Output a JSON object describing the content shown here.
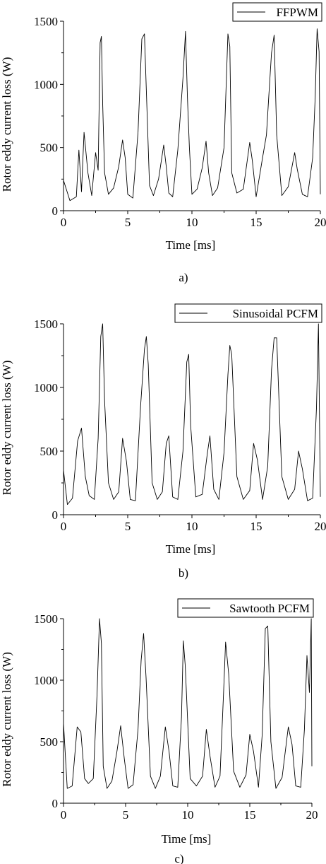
{
  "chart_data": [
    {
      "type": "line",
      "caption": "a)",
      "xlabel": "Time [ms]",
      "ylabel": "Rotor eddy current loss (W)",
      "xlim": [
        0,
        20
      ],
      "ylim": [
        0,
        1500
      ],
      "xticks": [
        "0",
        "5",
        "10",
        "15",
        "20"
      ],
      "yticks": [
        "0",
        "500",
        "1000",
        "1500"
      ],
      "legend_position": "top-right",
      "grid": false,
      "series": [
        {
          "name": "FFPWM",
          "color": "#000000",
          "x": [
            0,
            0.5,
            1.0,
            1.2,
            1.4,
            1.6,
            1.9,
            2.2,
            2.5,
            2.7,
            2.85,
            2.95,
            3.05,
            3.2,
            3.5,
            3.9,
            4.3,
            4.6,
            4.8,
            5.0,
            5.4,
            5.8,
            6.1,
            6.3,
            6.5,
            6.7,
            7.0,
            7.4,
            7.8,
            8.0,
            8.2,
            8.5,
            8.9,
            9.3,
            9.5,
            9.65,
            9.8,
            10.0,
            10.4,
            10.8,
            11.1,
            11.3,
            11.6,
            12.0,
            12.5,
            12.8,
            12.95,
            13.1,
            13.5,
            14.0,
            14.5,
            14.7,
            15.0,
            15.5,
            15.8,
            16.0,
            16.2,
            16.4,
            16.6,
            17.0,
            17.5,
            18.0,
            18.2,
            18.6,
            19.0,
            19.4,
            19.6,
            19.75,
            19.9,
            20.0
          ],
          "y": [
            240,
            80,
            110,
            480,
            150,
            620,
            300,
            120,
            460,
            320,
            1330,
            1380,
            850,
            300,
            130,
            180,
            350,
            560,
            420,
            130,
            100,
            620,
            1360,
            1400,
            800,
            200,
            120,
            250,
            520,
            350,
            140,
            110,
            480,
            1050,
            1420,
            900,
            500,
            130,
            170,
            340,
            550,
            300,
            120,
            180,
            500,
            1400,
            1300,
            300,
            140,
            170,
            540,
            400,
            110,
            420,
            600,
            930,
            1250,
            1390,
            600,
            120,
            190,
            460,
            330,
            130,
            110,
            420,
            900,
            1440,
            1260,
            130
          ]
        }
      ]
    },
    {
      "type": "line",
      "caption": "b)",
      "xlabel": "Time [ms]",
      "ylabel": "Rotor eddy current loss (W)",
      "xlim": [
        0,
        20
      ],
      "ylim": [
        0,
        1500
      ],
      "xticks": [
        "0",
        "5",
        "10",
        "15",
        "20"
      ],
      "yticks": [
        "0",
        "500",
        "1000",
        "1500"
      ],
      "legend_position": "top-right",
      "grid": false,
      "series": [
        {
          "name": "Sinusoidal PCFM",
          "color": "#000000",
          "x": [
            0,
            0.3,
            0.7,
            1.1,
            1.4,
            1.7,
            2.0,
            2.4,
            2.7,
            2.9,
            3.05,
            3.2,
            3.5,
            3.9,
            4.3,
            4.6,
            4.9,
            5.2,
            5.6,
            6.0,
            6.3,
            6.45,
            6.6,
            6.9,
            7.3,
            7.7,
            8.0,
            8.2,
            8.5,
            8.9,
            9.3,
            9.6,
            9.75,
            9.9,
            10.3,
            10.8,
            11.2,
            11.4,
            11.7,
            12.1,
            12.5,
            12.8,
            12.95,
            13.1,
            13.5,
            14.0,
            14.5,
            14.8,
            15.1,
            15.5,
            15.9,
            16.2,
            16.4,
            16.6,
            17.0,
            17.5,
            18.0,
            18.3,
            18.6,
            19.0,
            19.4,
            19.7,
            19.85,
            20.0
          ],
          "y": [
            350,
            80,
            130,
            580,
            680,
            300,
            150,
            120,
            600,
            1400,
            1500,
            900,
            250,
            120,
            180,
            600,
            420,
            120,
            110,
            850,
            1300,
            1400,
            1180,
            250,
            120,
            180,
            560,
            620,
            140,
            120,
            500,
            1200,
            1260,
            700,
            140,
            160,
            480,
            620,
            200,
            120,
            490,
            1100,
            1330,
            1260,
            300,
            120,
            190,
            560,
            430,
            120,
            380,
            1140,
            1390,
            1390,
            300,
            120,
            200,
            500,
            360,
            110,
            130,
            840,
            1500,
            140
          ]
        }
      ]
    },
    {
      "type": "line",
      "caption": "c)",
      "xlabel": "Time [ms]",
      "ylabel": "Rotor eddy current loss (W)",
      "xlim": [
        0,
        20
      ],
      "ylim": [
        0,
        1500
      ],
      "xticks": [
        "0",
        "5",
        "10",
        "15",
        "20"
      ],
      "yticks": [
        "0",
        "500",
        "1000",
        "1500"
      ],
      "legend_position": "top-right",
      "grid": false,
      "series": [
        {
          "name": "Sawtooth PCFM",
          "color": "#000000",
          "x": [
            0,
            0.3,
            0.7,
            1.1,
            1.4,
            1.7,
            2.0,
            2.4,
            2.7,
            2.9,
            3.05,
            3.2,
            3.5,
            3.9,
            4.3,
            4.6,
            4.9,
            5.2,
            5.6,
            6.0,
            6.25,
            6.45,
            6.65,
            7.0,
            7.4,
            7.8,
            8.2,
            8.5,
            8.8,
            9.2,
            9.5,
            9.65,
            9.8,
            10.2,
            10.7,
            11.2,
            11.5,
            11.8,
            12.2,
            12.6,
            12.9,
            13.05,
            13.3,
            13.7,
            14.2,
            14.7,
            15.0,
            15.3,
            15.7,
            16.0,
            16.25,
            16.45,
            16.7,
            17.1,
            17.6,
            18.1,
            18.4,
            18.7,
            19.1,
            19.4,
            19.6,
            19.8,
            19.95,
            20.0
          ],
          "y": [
            650,
            120,
            140,
            620,
            580,
            200,
            160,
            200,
            880,
            1500,
            1300,
            300,
            120,
            180,
            420,
            630,
            360,
            120,
            150,
            600,
            1160,
            1380,
            1020,
            220,
            120,
            220,
            620,
            420,
            140,
            130,
            700,
            1320,
            1120,
            200,
            140,
            220,
            600,
            380,
            130,
            220,
            920,
            1310,
            1050,
            260,
            130,
            230,
            560,
            420,
            130,
            560,
            1420,
            1440,
            500,
            120,
            210,
            620,
            480,
            140,
            130,
            600,
            1200,
            900,
            1500,
            300
          ]
        }
      ]
    }
  ]
}
